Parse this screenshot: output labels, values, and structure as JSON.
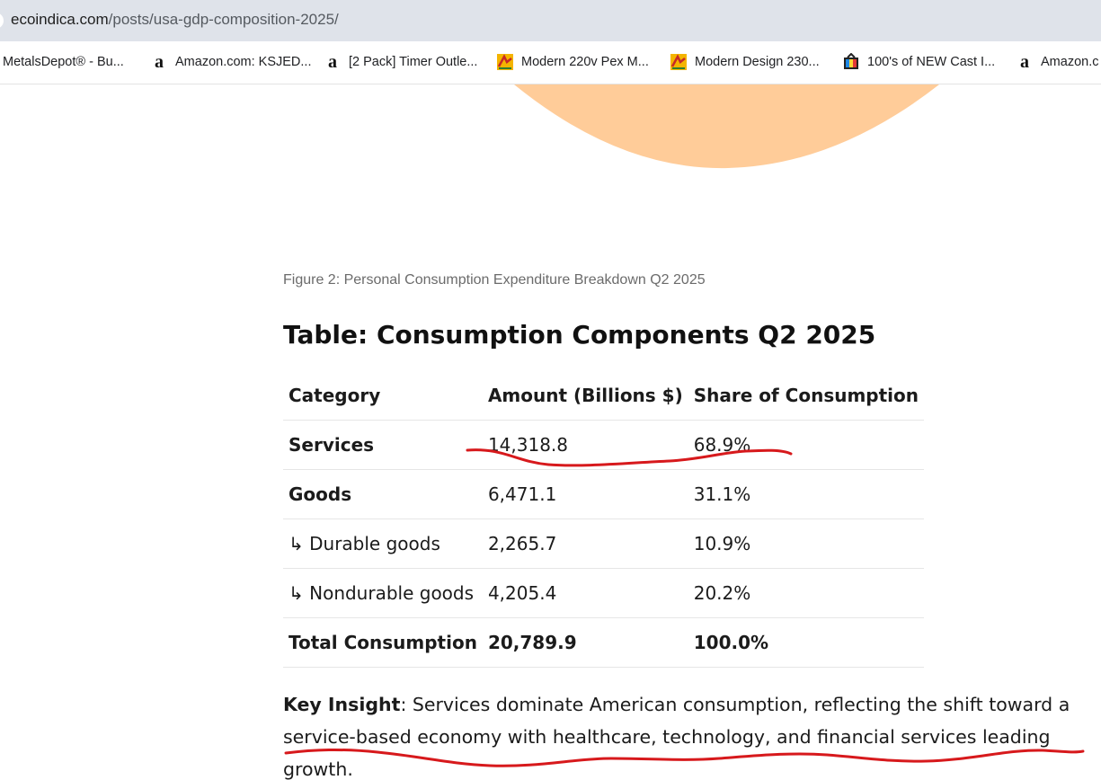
{
  "browser": {
    "url_host": "ecoindica.com",
    "url_path": "/posts/usa-gdp-composition-2025/",
    "bookmarks": [
      {
        "icon": "metal-icon",
        "label": "MetalsDepot® - Bu..."
      },
      {
        "icon": "amazon-icon",
        "label": "Amazon.com: KSJED..."
      },
      {
        "icon": "amazon-icon",
        "label": "[2 Pack] Timer Outle..."
      },
      {
        "icon": "design-icon",
        "label": "Modern 220v Pex M..."
      },
      {
        "icon": "design-icon",
        "label": "Modern Design 230..."
      },
      {
        "icon": "cast-icon",
        "label": "100's of NEW Cast I..."
      },
      {
        "icon": "amazon-icon",
        "label": "Amazon.c"
      }
    ]
  },
  "article": {
    "figure_caption": "Figure 2: Personal Consumption Expenditure Breakdown Q2 2025",
    "table_title": "Table: Consumption Components Q2 2025",
    "table": {
      "headers": [
        "Category",
        "Amount (Billions $)",
        "Share of Consumption"
      ],
      "rows": [
        {
          "category": "Services",
          "amount": "14,318.8",
          "share": "68.9%"
        },
        {
          "category": "Goods",
          "amount": "6,471.1",
          "share": "31.1%"
        },
        {
          "category": "↳ Durable goods",
          "amount": "2,265.7",
          "share": "10.9%"
        },
        {
          "category": "↳ Nondurable goods",
          "amount": "4,205.4",
          "share": "20.2%"
        },
        {
          "category": "Total Consumption",
          "amount": "20,789.9",
          "share": "100.0%"
        }
      ]
    },
    "insight_label": "Key Insight",
    "insight_text": ": Services dominate American consumption, reflecting the shift toward a service-based economy with healthcare, technology, and financial services leading growth."
  },
  "colors": {
    "pie_slice": "#ffcc99",
    "annotation": "#d7191c",
    "urlbar": "#dfe3ea"
  }
}
